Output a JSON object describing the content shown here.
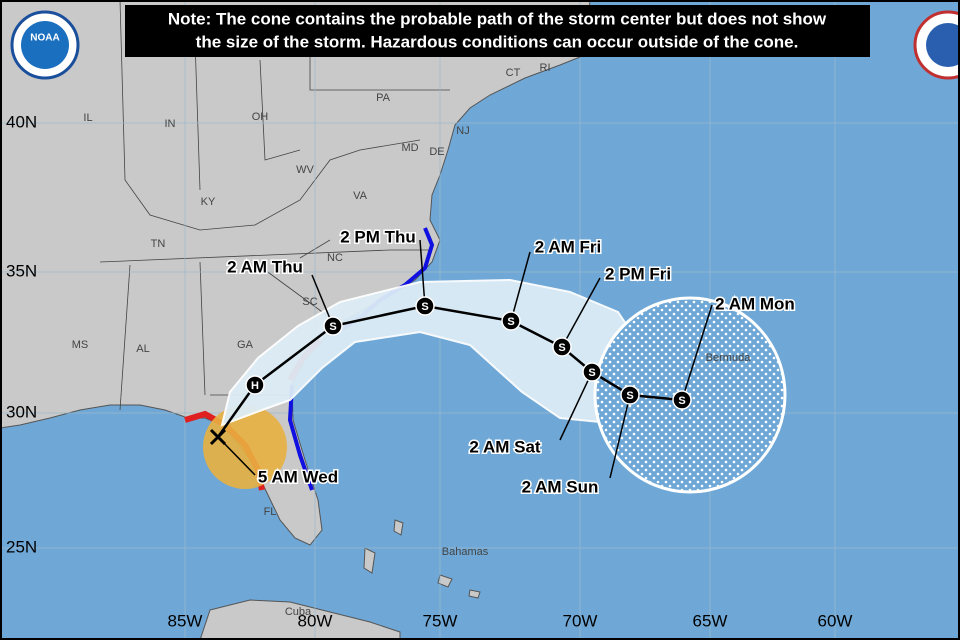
{
  "note": [
    "Note: The cone contains the probable path of the storm center but does not show",
    "the size of the storm. Hazardous conditions can occur outside of the cone."
  ],
  "logo": "NOAA",
  "latitude_labels": [
    "40N",
    "35N",
    "30N",
    "25N"
  ],
  "longitude_labels": [
    "85W",
    "80W",
    "75W",
    "70W",
    "65W",
    "60W"
  ],
  "region_labels": [
    "IL",
    "IN",
    "OH",
    "PA",
    "CT",
    "RI",
    "NJ",
    "MD",
    "DE",
    "WV",
    "VA",
    "KY",
    "TN",
    "NC",
    "SC",
    "GA",
    "AL",
    "MS",
    "FL",
    "Bermuda",
    "Bahamas",
    "Cuba"
  ],
  "track_symbols": [
    "X",
    "H",
    "S",
    "S",
    "S",
    "S",
    "S",
    "S",
    "S"
  ],
  "time_labels": [
    "5 AM Wed",
    "2 AM Thu",
    "2 PM Thu",
    "2 AM Fri",
    "2 PM Fri",
    "2 AM Sat",
    "2 AM Sun",
    "2 AM Mon"
  ]
}
